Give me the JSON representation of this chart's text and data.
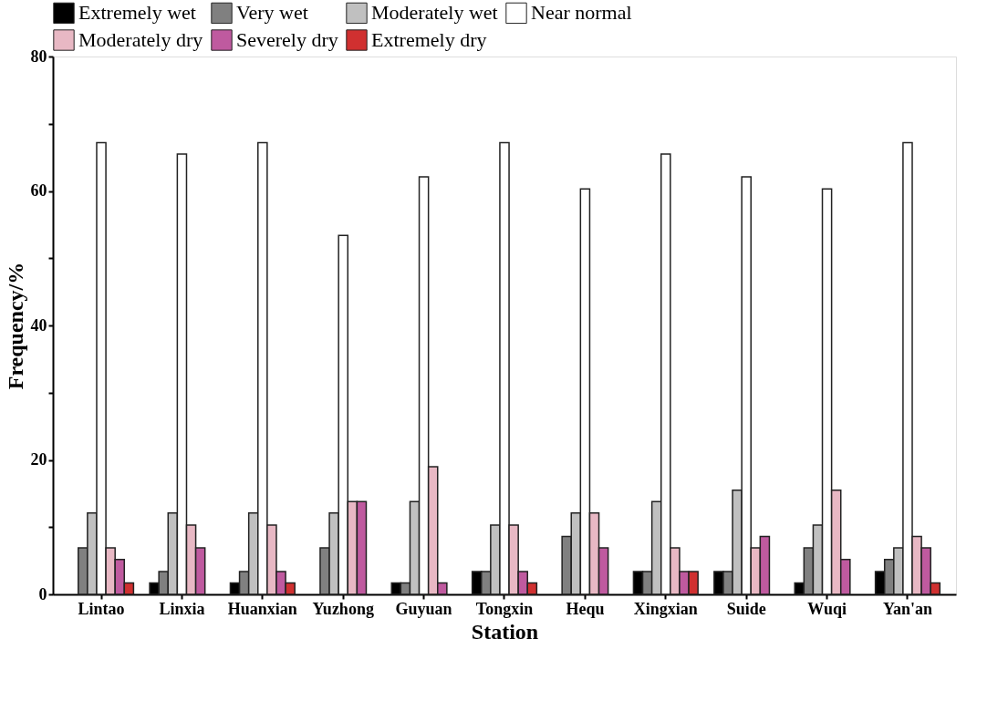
{
  "chart_data": {
    "type": "bar",
    "xlabel": "Station",
    "ylabel": "Frequency/%",
    "categories": [
      "Lintao",
      "Linxia",
      "Huanxian",
      "Yuzhong",
      "Guyuan",
      "Tongxin",
      "Hequ",
      "Xingxian",
      "Suide",
      "Wuqi",
      "Yan'an"
    ],
    "series": [
      {
        "name": "Extremely wet",
        "color": "#000000",
        "values": [
          0,
          1.7,
          1.7,
          0,
          1.7,
          3.4,
          0,
          3.4,
          3.4,
          1.7,
          3.4
        ]
      },
      {
        "name": "Very wet",
        "color": "#808080",
        "values": [
          6.9,
          3.4,
          3.4,
          6.9,
          1.7,
          3.4,
          8.6,
          3.4,
          3.4,
          6.9,
          5.2
        ]
      },
      {
        "name": "Moderately wet",
        "color": "#c0c0c0",
        "values": [
          12.1,
          12.1,
          12.1,
          12.1,
          13.8,
          10.3,
          12.1,
          13.8,
          15.5,
          10.3,
          6.9
        ]
      },
      {
        "name": "Near normal",
        "color": "#ffffff",
        "values": [
          67.2,
          65.5,
          67.2,
          53.4,
          62.1,
          67.2,
          60.3,
          65.5,
          62.1,
          60.3,
          67.2
        ]
      },
      {
        "name": "Moderately dry",
        "color": "#e8b8c4",
        "values": [
          6.9,
          10.3,
          10.3,
          13.8,
          19.0,
          10.3,
          12.1,
          6.9,
          6.9,
          15.5,
          8.6
        ]
      },
      {
        "name": "Severely dry",
        "color": "#bf5a9f",
        "values": [
          5.2,
          6.9,
          3.4,
          13.8,
          1.7,
          3.4,
          6.9,
          3.4,
          8.6,
          5.2,
          6.9
        ]
      },
      {
        "name": "Extremely dry",
        "color": "#d03030",
        "values": [
          1.7,
          0,
          1.7,
          0,
          0,
          1.7,
          0,
          3.4,
          0,
          0,
          1.7
        ]
      }
    ],
    "ylim": [
      0,
      80
    ],
    "yticks": [
      0,
      {
        "value": 10,
        "label": null
      },
      20,
      {
        "value": 30,
        "label": null
      },
      40,
      {
        "value": 50,
        "label": null
      },
      60,
      {
        "value": 70,
        "label": null
      },
      80
    ],
    "grid": false,
    "legend": "top"
  }
}
